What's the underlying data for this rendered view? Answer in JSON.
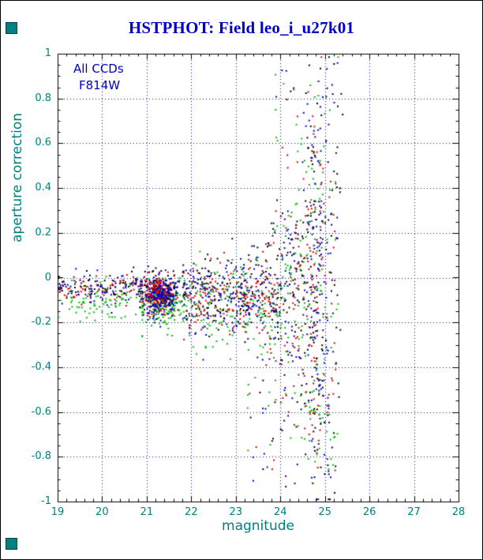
{
  "window": {
    "title": "HSTPHOT: Field leo_i_u27k01",
    "title_color": "#0000cc",
    "background": "#ffffff",
    "border_color": "#000000"
  },
  "decorations": {
    "corner_marker_color": "#008080"
  },
  "annotations": {
    "color": "#0000bb",
    "ccd_label": "All CCDs",
    "filter_label": "F814W"
  },
  "chart_data": {
    "type": "scatter",
    "title": "HSTPHOT: Field leo_i_u27k01",
    "xlabel": "magnitude",
    "ylabel": "aperture correction",
    "xlim": [
      19,
      28
    ],
    "ylim": [
      -1,
      1
    ],
    "x_ticks": [
      19,
      20,
      21,
      22,
      23,
      24,
      25,
      26,
      27,
      28
    ],
    "y_ticks": [
      -1,
      -0.8,
      -0.6,
      -0.4,
      -0.2,
      0,
      0.2,
      0.4,
      0.6,
      0.8,
      1
    ],
    "grid": {
      "show": true,
      "style": "dotted",
      "color": "#0000bb"
    },
    "frame_color": "#000000",
    "tick_label_color": "#008080",
    "axis_label_color": "#008080",
    "annotations": [
      "All CCDs",
      "F814W"
    ],
    "marker_px": 2,
    "seed": 1234567,
    "points_encoding": "Several thousand unlabeled photometric points; represented as per-CCD-color cluster distributions. dist arrays: ['u',min,max]=uniform, ['g',mean,sigma,clampMin,clampMax]=gaussian; funnel: sigma grows from s0 at x-range start to s1 at end with exponent p.",
    "summary": "Aperture correction vs magnitude for 4 CCDs (black, red, green, blue). Tight band near -0.05 to -0.12 for mag 19-22 with a very dense clump at mag ~21.3; scatter fans out for mag > 23 reaching +/-1 by mag ~24.5-25; dense vertical column near mag 24.8; data end near mag 25.4.",
    "series": [
      {
        "name": "ccd-green",
        "color": "#00bb00",
        "clusters": [
          {
            "n": 90,
            "x": [
              "u",
              19.02,
              20.9
            ],
            "y": [
              "g",
              -0.1,
              0.045,
              -0.26,
              0.02
            ]
          },
          {
            "n": 160,
            "x": [
              "g",
              21.35,
              0.25,
              20.9,
              22.0
            ],
            "y": [
              "g",
              -0.12,
              0.05,
              -0.32,
              0.0
            ]
          },
          {
            "n": 90,
            "x": [
              "u",
              21.8,
              23.0
            ],
            "y": [
              "g",
              -0.12,
              0.1,
              -0.55,
              0.25
            ]
          },
          {
            "n": 200,
            "x": [
              "u",
              23.0,
              25.3
            ],
            "funnel": {
              "mu": -0.12,
              "s0": 0.09,
              "s1": 0.6,
              "p": 1.6
            }
          },
          {
            "n": 40,
            "x": [
              "g",
              24.78,
              0.13,
              24.5,
              25.1
            ],
            "y": [
              "u",
              -0.85,
              0.9
            ]
          },
          {
            "n": 10,
            "x": [
              "u",
              23.8,
              25.2
            ],
            "y": [
              "u",
              0.55,
              0.97
            ]
          },
          {
            "n": 14,
            "x": [
              "u",
              23.2,
              25.0
            ],
            "y": [
              "u",
              -0.8,
              -0.45
            ]
          }
        ]
      },
      {
        "name": "ccd-black",
        "color": "#000000",
        "clusters": [
          {
            "n": 70,
            "x": [
              "u",
              19.02,
              20.9
            ],
            "y": [
              "g",
              -0.045,
              0.03,
              -0.2,
              0.08
            ]
          },
          {
            "n": 150,
            "x": [
              "g",
              21.3,
              0.22,
              20.85,
              21.9
            ],
            "y": [
              "g",
              -0.07,
              0.045,
              -0.3,
              0.05
            ]
          },
          {
            "n": 90,
            "x": [
              "u",
              21.8,
              23.0
            ],
            "y": [
              "g",
              -0.07,
              0.09,
              -0.5,
              0.3
            ]
          },
          {
            "n": 230,
            "x": [
              "u",
              23.0,
              25.35
            ],
            "funnel": {
              "mu": -0.08,
              "s0": 0.08,
              "s1": 0.55,
              "p": 1.6
            }
          },
          {
            "n": 45,
            "x": [
              "g",
              24.8,
              0.12,
              24.5,
              25.1
            ],
            "y": [
              "u",
              -0.85,
              0.95
            ]
          },
          {
            "n": 10,
            "x": [
              "u",
              23.8,
              25.4
            ],
            "y": [
              "u",
              0.55,
              0.98
            ]
          },
          {
            "n": 12,
            "x": [
              "u",
              23.3,
              25.2
            ],
            "y": [
              "u",
              -0.97,
              -0.5
            ]
          }
        ]
      },
      {
        "name": "ccd-red",
        "color": "#dd0000",
        "clusters": [
          {
            "n": 60,
            "x": [
              "u",
              19.02,
              20.9
            ],
            "y": [
              "g",
              -0.05,
              0.03,
              -0.2,
              0.06
            ]
          },
          {
            "n": 190,
            "x": [
              "g",
              21.25,
              0.18,
              20.9,
              21.8
            ],
            "y": [
              "g",
              -0.075,
              0.04,
              -0.28,
              0.04
            ]
          },
          {
            "n": 80,
            "x": [
              "u",
              21.8,
              23.0
            ],
            "y": [
              "g",
              -0.08,
              0.08,
              -0.45,
              0.25
            ]
          },
          {
            "n": 190,
            "x": [
              "u",
              23.0,
              25.25
            ],
            "funnel": {
              "mu": -0.09,
              "s0": 0.07,
              "s1": 0.45,
              "p": 1.6
            }
          },
          {
            "n": 35,
            "x": [
              "g",
              24.75,
              0.12,
              24.5,
              25.05
            ],
            "y": [
              "u",
              -0.75,
              0.75
            ]
          },
          {
            "n": 6,
            "x": [
              "u",
              23.9,
              25.1
            ],
            "y": [
              "u",
              0.5,
              0.85
            ]
          },
          {
            "n": 10,
            "x": [
              "u",
              23.3,
              25.0
            ],
            "y": [
              "u",
              -0.9,
              -0.5
            ]
          }
        ]
      },
      {
        "name": "ccd-blue",
        "color": "#0000cc",
        "clusters": [
          {
            "n": 70,
            "x": [
              "u",
              19.02,
              20.9
            ],
            "y": [
              "g",
              -0.05,
              0.035,
              -0.2,
              0.07
            ]
          },
          {
            "n": 170,
            "x": [
              "g",
              21.3,
              0.22,
              20.85,
              21.9
            ],
            "y": [
              "g",
              -0.08,
              0.05,
              -0.3,
              0.05
            ]
          },
          {
            "n": 85,
            "x": [
              "u",
              21.8,
              23.0
            ],
            "y": [
              "g",
              -0.08,
              0.09,
              -0.5,
              0.3
            ]
          },
          {
            "n": 210,
            "x": [
              "u",
              23.0,
              25.3
            ],
            "funnel": {
              "mu": -0.08,
              "s0": 0.08,
              "s1": 0.5,
              "p": 1.6
            }
          },
          {
            "n": 50,
            "x": [
              "g",
              24.8,
              0.12,
              24.5,
              25.1
            ],
            "y": [
              "u",
              -0.9,
              0.9
            ]
          },
          {
            "n": 10,
            "x": [
              "u",
              23.8,
              25.3
            ],
            "y": [
              "u",
              0.55,
              0.97
            ]
          },
          {
            "n": 12,
            "x": [
              "u",
              23.3,
              25.2
            ],
            "y": [
              "u",
              -0.95,
              -0.5
            ]
          }
        ]
      }
    ]
  }
}
